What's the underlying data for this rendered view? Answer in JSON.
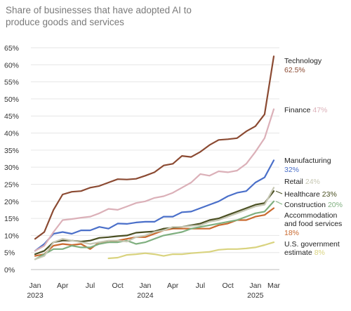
{
  "title": "Share of businesses that have adopted AI to produce goods and services",
  "chart_data": {
    "type": "line",
    "title": "Share of businesses that have adopted AI to produce goods and services",
    "xlabel": "",
    "ylabel": "",
    "ylim": [
      0,
      65
    ],
    "y_ticks": [
      "65%",
      "60%",
      "55%",
      "50%",
      "45%",
      "40%",
      "35%",
      "30%",
      "25%",
      "20%",
      "15%",
      "10%",
      "5%",
      "0%"
    ],
    "x_ticks": [
      {
        "label": "Jan",
        "sub": "2023",
        "x": 0
      },
      {
        "label": "Apr",
        "sub": "",
        "x": 3
      },
      {
        "label": "Jul",
        "sub": "",
        "x": 6
      },
      {
        "label": "Oct",
        "sub": "",
        "x": 9
      },
      {
        "label": "Jan",
        "sub": "2024",
        "x": 12
      },
      {
        "label": "Apr",
        "sub": "",
        "x": 15
      },
      {
        "label": "Jul",
        "sub": "",
        "x": 18
      },
      {
        "label": "Oct",
        "sub": "",
        "x": 21
      },
      {
        "label": "Jan",
        "sub": "2025",
        "x": 24
      },
      {
        "label": "Mar",
        "sub": "",
        "x": 26
      }
    ],
    "x_unit": "months since Jan 2023",
    "grid": "horizontal",
    "series": [
      {
        "name": "Technology",
        "value_label": "62.5%",
        "color": "#8b4a32",
        "x": [
          0,
          1,
          2,
          3,
          4,
          5,
          6,
          7,
          8,
          9,
          10,
          11,
          12,
          13,
          14,
          15,
          16,
          17,
          18,
          19,
          20,
          21,
          22,
          23,
          24,
          25,
          26
        ],
        "y": [
          9,
          11,
          17.5,
          22,
          22.8,
          23,
          24,
          24.5,
          25.5,
          26.5,
          26.4,
          26.6,
          27.5,
          28.5,
          30.5,
          31,
          33.3,
          33,
          34.5,
          36.5,
          38,
          38.2,
          38.5,
          40.5,
          42,
          45.5,
          62.5
        ]
      },
      {
        "name": "Finance",
        "value_label": "47%",
        "color": "#dbb0b8",
        "x": [
          0,
          1,
          2,
          3,
          4,
          5,
          6,
          7,
          8,
          9,
          10,
          11,
          12,
          13,
          14,
          15,
          16,
          17,
          18,
          19,
          20,
          21,
          22,
          23,
          24,
          25,
          26
        ],
        "y": [
          5.5,
          7,
          11,
          14.5,
          14.8,
          15.2,
          15.5,
          16.5,
          17.8,
          17.5,
          18.5,
          19.5,
          20,
          21,
          21.5,
          22.5,
          24,
          25.5,
          28,
          27.5,
          28.8,
          28.5,
          29,
          31,
          34.5,
          38.5,
          47
        ]
      },
      {
        "name": "Manufacturing",
        "value_label": "32%",
        "color": "#4a6fc9",
        "x": [
          0,
          1,
          2,
          3,
          4,
          5,
          6,
          7,
          8,
          9,
          10,
          11,
          12,
          13,
          14,
          15,
          16,
          17,
          18,
          19,
          20,
          21,
          22,
          23,
          24,
          25,
          26
        ],
        "y": [
          5.5,
          7.5,
          10.5,
          11,
          10.5,
          11.5,
          11.5,
          12.5,
          12,
          13.5,
          13.4,
          13.8,
          14,
          14,
          15.5,
          15.5,
          16.8,
          17,
          18,
          19,
          20,
          21.5,
          22.5,
          23,
          25.5,
          27,
          32
        ]
      },
      {
        "name": "Retail",
        "value_label": "24%",
        "color": "#c7c8b4",
        "x": [
          0,
          1,
          2,
          3,
          4,
          5,
          6,
          7,
          8,
          9,
          10,
          11,
          12,
          13,
          14,
          15,
          16,
          17,
          18,
          19,
          20,
          21,
          22,
          23,
          24,
          25,
          26
        ],
        "y": [
          3,
          4,
          8,
          9,
          8.5,
          8,
          7.5,
          8,
          8.5,
          8.5,
          8.2,
          9.5,
          10,
          11,
          11.5,
          12.5,
          12.5,
          12.8,
          13,
          14,
          14.5,
          15.5,
          16.5,
          17.5,
          18.5,
          19,
          24
        ]
      },
      {
        "name": "Healthcare",
        "value_label": "23%",
        "color": "#4a4f22",
        "x": [
          0,
          1,
          2,
          3,
          4,
          5,
          6,
          7,
          8,
          9,
          10,
          11,
          12,
          13,
          14,
          15,
          16,
          17,
          18,
          19,
          20,
          21,
          22,
          23,
          24,
          25,
          26
        ],
        "y": [
          4.5,
          5.5,
          8,
          8.5,
          8.5,
          8.2,
          8.5,
          9.3,
          9.5,
          9.8,
          10,
          10.8,
          11,
          11.2,
          12,
          12.3,
          12.5,
          13,
          13.5,
          14.5,
          15,
          16,
          17,
          18,
          19,
          19.5,
          23
        ]
      },
      {
        "name": "Construction",
        "value_label": "20%",
        "color": "#7faf7f",
        "x": [
          0,
          1,
          2,
          3,
          4,
          5,
          6,
          7,
          8,
          9,
          10,
          11,
          12,
          13,
          14,
          15,
          16,
          17,
          18,
          19,
          20,
          21,
          22,
          23,
          24,
          25,
          26
        ],
        "y": [
          3,
          4.5,
          6,
          6,
          7,
          6.5,
          6.5,
          7.5,
          8,
          8,
          8.5,
          7.5,
          8,
          9,
          10,
          10.5,
          11,
          12,
          12.5,
          13,
          13.5,
          14,
          14.5,
          15.5,
          16.5,
          17,
          20
        ]
      },
      {
        "name": "Accommodation and food services",
        "value_label": "18%",
        "color": "#c9692e",
        "x": [
          0,
          1,
          2,
          3,
          4,
          5,
          6,
          7,
          8,
          9,
          10,
          11,
          12,
          13,
          14,
          15,
          16,
          17,
          18,
          19,
          20,
          21,
          22,
          23,
          24,
          25,
          26
        ],
        "y": [
          4,
          4.5,
          7,
          7.5,
          7.2,
          7.5,
          6,
          8,
          8,
          8.5,
          9,
          9.5,
          9.5,
          10.5,
          11.5,
          12,
          12,
          12,
          12,
          12,
          13,
          13.5,
          14.5,
          14.5,
          15.5,
          16,
          18
        ]
      },
      {
        "name": "U.S. government estimate",
        "value_label": "8%",
        "color": "#d9d37f",
        "x": [
          8,
          9,
          10,
          11,
          12,
          13,
          14,
          15,
          16,
          17,
          18,
          19,
          20,
          21,
          22,
          23,
          24,
          25,
          26
        ],
        "y": [
          3.3,
          3.5,
          4.3,
          4.5,
          4.8,
          4.5,
          4,
          4.5,
          4.5,
          4.8,
          5,
          5.2,
          5.8,
          6,
          6,
          6.2,
          6.5,
          7.2,
          8
        ]
      }
    ]
  }
}
